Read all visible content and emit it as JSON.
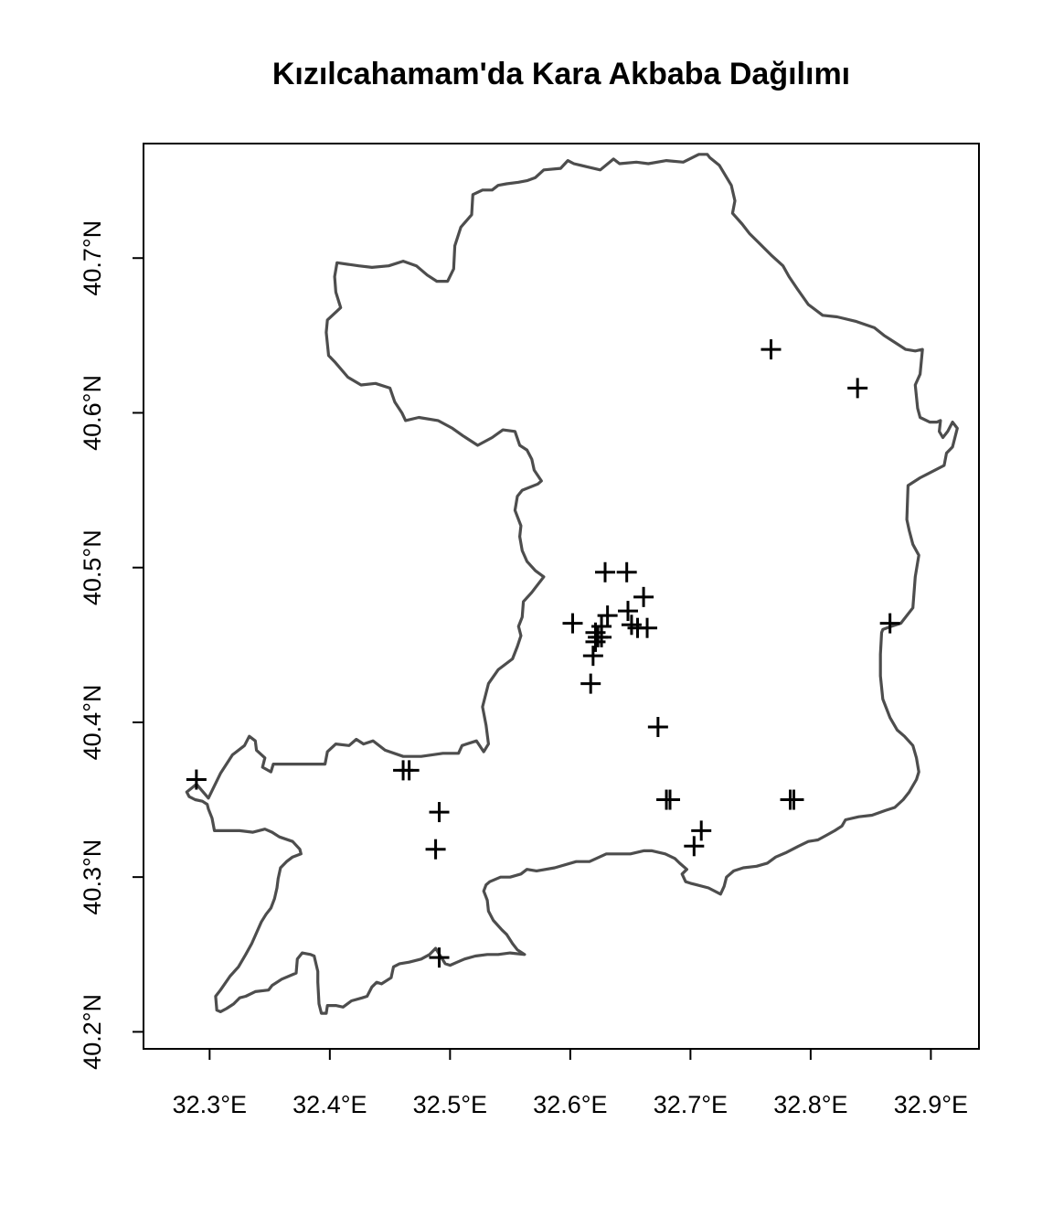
{
  "chart_data": {
    "type": "scatter",
    "title": "Kızılcahamam'da Kara Akbaba Dağılımı",
    "xlabel": "",
    "ylabel": "",
    "xlim": [
      32.245,
      32.94
    ],
    "ylim": [
      40.189,
      40.774
    ],
    "x_ticks": [
      {
        "value": 32.3,
        "label": "32.3°E"
      },
      {
        "value": 32.4,
        "label": "32.4°E"
      },
      {
        "value": 32.5,
        "label": "32.5°E"
      },
      {
        "value": 32.6,
        "label": "32.6°E"
      },
      {
        "value": 32.7,
        "label": "32.7°E"
      },
      {
        "value": 32.8,
        "label": "32.8°E"
      },
      {
        "value": 32.9,
        "label": "32.9°E"
      }
    ],
    "y_ticks": [
      {
        "value": 40.2,
        "label": "40.2°N"
      },
      {
        "value": 40.3,
        "label": "40.3°N"
      },
      {
        "value": 40.4,
        "label": "40.4°N"
      },
      {
        "value": 40.5,
        "label": "40.5°N"
      },
      {
        "value": 40.6,
        "label": "40.6°N"
      },
      {
        "value": 40.7,
        "label": "40.7°N"
      }
    ],
    "grid": false,
    "marker": "plus",
    "boundary_color": "#4d4d4d",
    "marker_color": "#000000",
    "boundary": [
      [
        32.299,
        40.351
      ],
      [
        32.309,
        40.367
      ],
      [
        32.319,
        40.379
      ],
      [
        32.329,
        40.385
      ],
      [
        32.333,
        40.391
      ],
      [
        32.338,
        40.388
      ],
      [
        32.339,
        40.382
      ],
      [
        32.346,
        40.377
      ],
      [
        32.344,
        40.371
      ],
      [
        32.351,
        40.368
      ],
      [
        32.353,
        40.373
      ],
      [
        32.379,
        40.373
      ],
      [
        32.396,
        40.373
      ],
      [
        32.398,
        40.381
      ],
      [
        32.405,
        40.386
      ],
      [
        32.416,
        40.385
      ],
      [
        32.422,
        40.389
      ],
      [
        32.428,
        40.386
      ],
      [
        32.436,
        40.388
      ],
      [
        32.446,
        40.382
      ],
      [
        32.461,
        40.378
      ],
      [
        32.476,
        40.378
      ],
      [
        32.494,
        40.38
      ],
      [
        32.507,
        40.38
      ],
      [
        32.51,
        40.385
      ],
      [
        32.522,
        40.388
      ],
      [
        32.528,
        40.381
      ],
      [
        32.532,
        40.386
      ],
      [
        32.53,
        40.398
      ],
      [
        32.527,
        40.41
      ],
      [
        32.532,
        40.425
      ],
      [
        32.54,
        40.434
      ],
      [
        32.552,
        40.441
      ],
      [
        32.556,
        40.449
      ],
      [
        32.559,
        40.456
      ],
      [
        32.557,
        40.462
      ],
      [
        32.56,
        40.468
      ],
      [
        32.561,
        40.478
      ],
      [
        32.568,
        40.484
      ],
      [
        32.571,
        40.487
      ],
      [
        32.578,
        40.494
      ],
      [
        32.571,
        40.498
      ],
      [
        32.564,
        40.504
      ],
      [
        32.56,
        40.511
      ],
      [
        32.558,
        40.52
      ],
      [
        32.559,
        40.527
      ],
      [
        32.554,
        40.537
      ],
      [
        32.556,
        40.546
      ],
      [
        32.56,
        40.55
      ],
      [
        32.573,
        40.554
      ],
      [
        32.576,
        40.556
      ],
      [
        32.57,
        40.563
      ],
      [
        32.568,
        40.57
      ],
      [
        32.564,
        40.576
      ],
      [
        32.558,
        40.579
      ],
      [
        32.554,
        40.588
      ],
      [
        32.544,
        40.589
      ],
      [
        32.535,
        40.584
      ],
      [
        32.523,
        40.579
      ],
      [
        32.511,
        40.585
      ],
      [
        32.502,
        40.59
      ],
      [
        32.49,
        40.595
      ],
      [
        32.474,
        40.597
      ],
      [
        32.463,
        40.595
      ],
      [
        32.46,
        40.6
      ],
      [
        32.454,
        40.607
      ],
      [
        32.45,
        40.616
      ],
      [
        32.438,
        40.619
      ],
      [
        32.426,
        40.618
      ],
      [
        32.415,
        40.623
      ],
      [
        32.404,
        40.633
      ],
      [
        32.399,
        40.637
      ],
      [
        32.397,
        40.652
      ],
      [
        32.398,
        40.66
      ],
      [
        32.409,
        40.668
      ],
      [
        32.405,
        40.678
      ],
      [
        32.404,
        40.688
      ],
      [
        32.406,
        40.697
      ],
      [
        32.424,
        40.695
      ],
      [
        32.435,
        40.694
      ],
      [
        32.449,
        40.695
      ],
      [
        32.461,
        40.698
      ],
      [
        32.472,
        40.695
      ],
      [
        32.481,
        40.689
      ],
      [
        32.489,
        40.685
      ],
      [
        32.498,
        40.685
      ],
      [
        32.503,
        40.693
      ],
      [
        32.504,
        40.708
      ],
      [
        32.509,
        40.72
      ],
      [
        32.518,
        40.728
      ],
      [
        32.519,
        40.741
      ],
      [
        32.527,
        40.744
      ],
      [
        32.535,
        40.744
      ],
      [
        32.54,
        40.747
      ],
      [
        32.547,
        40.748
      ],
      [
        32.557,
        40.749
      ],
      [
        32.564,
        40.75
      ],
      [
        32.571,
        40.752
      ],
      [
        32.578,
        40.757
      ],
      [
        32.592,
        40.758
      ],
      [
        32.598,
        40.763
      ],
      [
        32.603,
        40.761
      ],
      [
        32.614,
        40.759
      ],
      [
        32.625,
        40.757
      ],
      [
        32.636,
        40.764
      ],
      [
        32.641,
        40.761
      ],
      [
        32.655,
        40.762
      ],
      [
        32.665,
        40.761
      ],
      [
        32.68,
        40.763
      ],
      [
        32.694,
        40.762
      ],
      [
        32.707,
        40.767
      ],
      [
        32.714,
        40.767
      ],
      [
        32.716,
        40.765
      ],
      [
        32.724,
        40.76
      ],
      [
        32.734,
        40.747
      ],
      [
        32.737,
        40.737
      ],
      [
        32.735,
        40.729
      ],
      [
        32.743,
        40.722
      ],
      [
        32.749,
        40.716
      ],
      [
        32.758,
        40.709
      ],
      [
        32.767,
        40.702
      ],
      [
        32.777,
        40.695
      ],
      [
        32.782,
        40.688
      ],
      [
        32.789,
        40.68
      ],
      [
        32.798,
        40.67
      ],
      [
        32.81,
        40.663
      ],
      [
        32.822,
        40.662
      ],
      [
        32.838,
        40.659
      ],
      [
        32.853,
        40.655
      ],
      [
        32.861,
        40.65
      ],
      [
        32.867,
        40.647
      ],
      [
        32.879,
        40.641
      ],
      [
        32.887,
        40.64
      ],
      [
        32.893,
        40.641
      ],
      [
        32.891,
        40.625
      ],
      [
        32.887,
        40.618
      ],
      [
        32.889,
        40.603
      ],
      [
        32.891,
        40.597
      ],
      [
        32.899,
        40.594
      ],
      [
        32.905,
        40.594
      ],
      [
        32.908,
        40.595
      ],
      [
        32.907,
        40.588
      ],
      [
        32.91,
        40.584
      ],
      [
        32.914,
        40.588
      ],
      [
        32.918,
        40.594
      ],
      [
        32.922,
        40.59
      ],
      [
        32.918,
        40.578
      ],
      [
        32.913,
        40.574
      ],
      [
        32.911,
        40.566
      ],
      [
        32.891,
        40.558
      ],
      [
        32.881,
        40.553
      ],
      [
        32.88,
        40.531
      ],
      [
        32.882,
        40.524
      ],
      [
        32.885,
        40.515
      ],
      [
        32.89,
        40.508
      ],
      [
        32.887,
        40.494
      ],
      [
        32.885,
        40.474
      ],
      [
        32.875,
        40.464
      ],
      [
        32.867,
        40.462
      ],
      [
        32.86,
        40.46
      ],
      [
        32.859,
        40.458
      ],
      [
        32.858,
        40.444
      ],
      [
        32.858,
        40.43
      ],
      [
        32.86,
        40.415
      ],
      [
        32.866,
        40.403
      ],
      [
        32.872,
        40.395
      ],
      [
        32.878,
        40.391
      ],
      [
        32.885,
        40.385
      ],
      [
        32.888,
        40.377
      ],
      [
        32.89,
        40.368
      ],
      [
        32.888,
        40.363
      ],
      [
        32.882,
        40.355
      ],
      [
        32.877,
        40.35
      ],
      [
        32.87,
        40.345
      ],
      [
        32.862,
        40.343
      ],
      [
        32.851,
        40.34
      ],
      [
        32.84,
        40.339
      ],
      [
        32.829,
        40.337
      ],
      [
        32.826,
        40.333
      ],
      [
        32.82,
        40.33
      ],
      [
        32.813,
        40.327
      ],
      [
        32.806,
        40.324
      ],
      [
        32.798,
        40.323
      ],
      [
        32.79,
        40.32
      ],
      [
        32.78,
        40.316
      ],
      [
        32.771,
        40.313
      ],
      [
        32.764,
        40.309
      ],
      [
        32.755,
        40.307
      ],
      [
        32.744,
        40.306
      ],
      [
        32.736,
        40.304
      ],
      [
        32.73,
        40.3
      ],
      [
        32.728,
        40.294
      ],
      [
        32.725,
        40.289
      ],
      [
        32.715,
        40.293
      ],
      [
        32.705,
        40.295
      ],
      [
        32.7,
        40.296
      ],
      [
        32.696,
        40.297
      ],
      [
        32.693,
        40.302
      ],
      [
        32.697,
        40.305
      ],
      [
        32.691,
        40.309
      ],
      [
        32.687,
        40.312
      ],
      [
        32.679,
        40.315
      ],
      [
        32.668,
        40.317
      ],
      [
        32.661,
        40.317
      ],
      [
        32.65,
        40.315
      ],
      [
        32.64,
        40.315
      ],
      [
        32.63,
        40.315
      ],
      [
        32.616,
        40.31
      ],
      [
        32.605,
        40.31
      ],
      [
        32.587,
        40.306
      ],
      [
        32.572,
        40.304
      ],
      [
        32.564,
        40.305
      ],
      [
        32.559,
        40.302
      ],
      [
        32.55,
        40.3
      ],
      [
        32.542,
        40.3
      ],
      [
        32.533,
        40.297
      ],
      [
        32.53,
        40.295
      ],
      [
        32.528,
        40.291
      ],
      [
        32.531,
        40.285
      ],
      [
        32.532,
        40.278
      ],
      [
        32.536,
        40.272
      ],
      [
        32.543,
        40.266
      ],
      [
        32.547,
        40.263
      ],
      [
        32.552,
        40.257
      ],
      [
        32.556,
        40.253
      ],
      [
        32.562,
        40.25
      ],
      [
        32.55,
        40.251
      ],
      [
        32.54,
        40.25
      ],
      [
        32.531,
        40.25
      ],
      [
        32.521,
        40.249
      ],
      [
        32.512,
        40.247
      ],
      [
        32.506,
        40.245
      ],
      [
        32.5,
        40.243
      ],
      [
        32.496,
        40.244
      ],
      [
        32.492,
        40.249
      ],
      [
        32.488,
        40.254
      ],
      [
        32.483,
        40.25
      ],
      [
        32.476,
        40.247
      ],
      [
        32.466,
        40.245
      ],
      [
        32.458,
        40.244
      ],
      [
        32.453,
        40.242
      ],
      [
        32.451,
        40.235
      ],
      [
        32.443,
        40.231
      ],
      [
        32.439,
        40.232
      ],
      [
        32.435,
        40.229
      ],
      [
        32.431,
        40.223
      ],
      [
        32.427,
        40.222
      ],
      [
        32.418,
        40.22
      ],
      [
        32.411,
        40.216
      ],
      [
        32.405,
        40.217
      ],
      [
        32.401,
        40.217
      ],
      [
        32.398,
        40.217
      ],
      [
        32.397,
        40.212
      ],
      [
        32.393,
        40.212
      ],
      [
        32.391,
        40.218
      ],
      [
        32.39,
        40.232
      ],
      [
        32.39,
        40.239
      ],
      [
        32.387,
        40.249
      ],
      [
        32.384,
        40.25
      ],
      [
        32.377,
        40.251
      ],
      [
        32.373,
        40.247
      ],
      [
        32.372,
        40.238
      ],
      [
        32.36,
        40.234
      ],
      [
        32.352,
        40.23
      ],
      [
        32.349,
        40.227
      ],
      [
        32.338,
        40.226
      ],
      [
        32.33,
        40.223
      ],
      [
        32.325,
        40.222
      ],
      [
        32.32,
        40.218
      ],
      [
        32.314,
        40.215
      ],
      [
        32.309,
        40.213
      ],
      [
        32.306,
        40.214
      ],
      [
        32.305,
        40.223
      ],
      [
        32.309,
        40.227
      ],
      [
        32.317,
        40.236
      ],
      [
        32.324,
        40.242
      ],
      [
        32.33,
        40.25
      ],
      [
        32.335,
        40.257
      ],
      [
        32.339,
        40.264
      ],
      [
        32.343,
        40.271
      ],
      [
        32.347,
        40.276
      ],
      [
        32.351,
        40.28
      ],
      [
        32.354,
        40.286
      ],
      [
        32.356,
        40.293
      ],
      [
        32.357,
        40.299
      ],
      [
        32.359,
        40.306
      ],
      [
        32.364,
        40.31
      ],
      [
        32.369,
        40.313
      ],
      [
        32.376,
        40.315
      ],
      [
        32.375,
        40.318
      ],
      [
        32.369,
        40.323
      ],
      [
        32.358,
        40.326
      ],
      [
        32.352,
        40.329
      ],
      [
        32.346,
        40.331
      ],
      [
        32.336,
        40.329
      ],
      [
        32.325,
        40.33
      ],
      [
        32.315,
        40.33
      ],
      [
        32.304,
        40.33
      ],
      [
        32.302,
        40.338
      ],
      [
        32.299,
        40.344
      ],
      [
        32.298,
        40.347
      ],
      [
        32.294,
        40.349
      ],
      [
        32.288,
        40.35
      ],
      [
        32.283,
        40.352
      ],
      [
        32.281,
        40.355
      ],
      [
        32.289,
        40.36
      ],
      [
        32.299,
        40.351
      ]
    ],
    "points": [
      [
        32.767,
        40.641
      ],
      [
        32.839,
        40.616
      ],
      [
        32.629,
        40.497
      ],
      [
        32.647,
        40.497
      ],
      [
        32.661,
        40.481
      ],
      [
        32.648,
        40.472
      ],
      [
        32.631,
        40.469
      ],
      [
        32.602,
        40.464
      ],
      [
        32.626,
        40.462
      ],
      [
        32.651,
        40.463
      ],
      [
        32.656,
        40.461
      ],
      [
        32.664,
        40.461
      ],
      [
        32.621,
        40.458
      ],
      [
        32.623,
        40.455
      ],
      [
        32.626,
        40.455
      ],
      [
        32.621,
        40.452
      ],
      [
        32.619,
        40.443
      ],
      [
        32.617,
        40.425
      ],
      [
        32.866,
        40.464
      ],
      [
        32.673,
        40.397
      ],
      [
        32.461,
        40.369
      ],
      [
        32.466,
        40.369
      ],
      [
        32.289,
        40.363
      ],
      [
        32.68,
        40.35
      ],
      [
        32.683,
        40.35
      ],
      [
        32.783,
        40.35
      ],
      [
        32.786,
        40.35
      ],
      [
        32.491,
        40.342
      ],
      [
        32.709,
        40.33
      ],
      [
        32.703,
        40.32
      ],
      [
        32.488,
        40.318
      ],
      [
        32.491,
        40.248
      ]
    ]
  }
}
